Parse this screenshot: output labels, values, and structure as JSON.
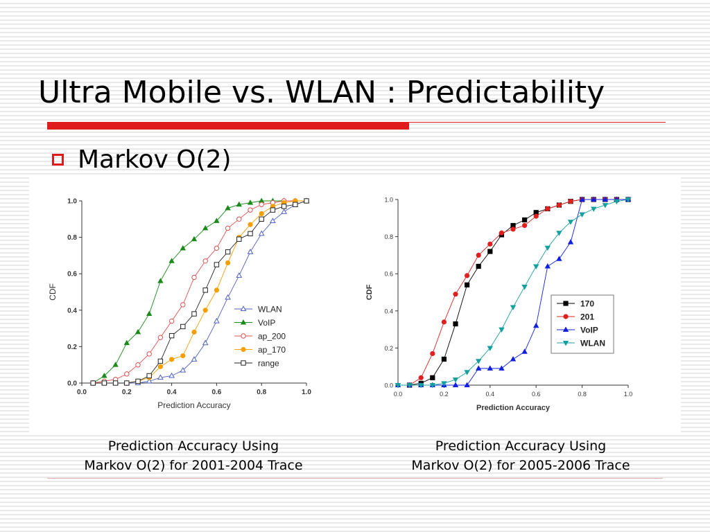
{
  "slide": {
    "title": "Ultra Mobile vs. WLAN : Predictability",
    "bullet": "Markov O(2)",
    "accent_color": "#e01b1b",
    "captions": [
      [
        "Prediction Accuracy Using",
        "Markov O(2) for 2001-2004 Trace"
      ],
      [
        "Prediction Accuracy Using",
        "Markov O(2) for 2005-2006 Trace"
      ]
    ]
  },
  "chart_data": [
    {
      "type": "line",
      "title": "",
      "xlabel": "Prediction Accuracy",
      "ylabel": "CDF",
      "xlim": [
        0,
        1
      ],
      "ylim": [
        0,
        1
      ],
      "xticks": [
        "0.0",
        "0.2",
        "0.4",
        "0.6",
        "0.8",
        "1.0"
      ],
      "yticks": [
        "0.0",
        "0.2",
        "0.4",
        "0.6",
        "0.8",
        "1.0"
      ],
      "legend_position": "center-right",
      "grid": false,
      "series": [
        {
          "name": "WLAN",
          "color": "#4f5fc4",
          "marker": "triangle-up-open",
          "x": [
            0.05,
            0.1,
            0.15,
            0.2,
            0.25,
            0.3,
            0.35,
            0.4,
            0.45,
            0.5,
            0.55,
            0.6,
            0.65,
            0.7,
            0.75,
            0.8,
            0.85,
            0.9,
            0.95,
            1.0
          ],
          "y": [
            0.0,
            0.0,
            0.0,
            0.0,
            0.0,
            0.01,
            0.03,
            0.04,
            0.07,
            0.13,
            0.22,
            0.34,
            0.47,
            0.59,
            0.72,
            0.82,
            0.89,
            0.94,
            0.98,
            1.0
          ]
        },
        {
          "name": "VoIP",
          "color": "#1a8a1a",
          "marker": "triangle-up",
          "x": [
            0.05,
            0.1,
            0.15,
            0.2,
            0.25,
            0.3,
            0.35,
            0.4,
            0.45,
            0.5,
            0.55,
            0.6,
            0.65,
            0.7,
            0.75,
            0.8,
            0.85,
            0.9,
            0.95,
            1.0
          ],
          "y": [
            0.0,
            0.04,
            0.1,
            0.22,
            0.28,
            0.38,
            0.56,
            0.67,
            0.74,
            0.79,
            0.85,
            0.89,
            0.96,
            0.98,
            0.99,
            1.0,
            1.0,
            1.0,
            1.0,
            1.0
          ]
        },
        {
          "name": "ap_200",
          "color": "#e05050",
          "marker": "circle-open",
          "x": [
            0.05,
            0.1,
            0.15,
            0.2,
            0.25,
            0.3,
            0.35,
            0.4,
            0.45,
            0.5,
            0.55,
            0.6,
            0.65,
            0.7,
            0.75,
            0.8,
            0.85,
            0.9,
            0.95,
            1.0
          ],
          "y": [
            0.0,
            0.01,
            0.02,
            0.05,
            0.1,
            0.16,
            0.25,
            0.34,
            0.43,
            0.58,
            0.67,
            0.74,
            0.85,
            0.9,
            0.95,
            0.98,
            0.99,
            1.0,
            1.0,
            1.0
          ]
        },
        {
          "name": "ap_170",
          "color": "#f5a000",
          "marker": "circle",
          "x": [
            0.05,
            0.1,
            0.15,
            0.2,
            0.25,
            0.3,
            0.35,
            0.4,
            0.45,
            0.5,
            0.55,
            0.6,
            0.65,
            0.7,
            0.75,
            0.8,
            0.85,
            0.9,
            0.95,
            1.0
          ],
          "y": [
            0.0,
            0.0,
            0.0,
            0.0,
            0.01,
            0.03,
            0.09,
            0.13,
            0.15,
            0.28,
            0.4,
            0.51,
            0.66,
            0.8,
            0.87,
            0.93,
            0.97,
            0.99,
            1.0,
            1.0
          ]
        },
        {
          "name": "range",
          "color": "#222222",
          "marker": "square-open",
          "x": [
            0.05,
            0.1,
            0.15,
            0.2,
            0.25,
            0.3,
            0.35,
            0.4,
            0.45,
            0.5,
            0.55,
            0.6,
            0.65,
            0.7,
            0.75,
            0.8,
            0.85,
            0.9,
            0.95,
            1.0
          ],
          "y": [
            0.0,
            0.0,
            0.0,
            0.0,
            0.01,
            0.04,
            0.12,
            0.26,
            0.31,
            0.38,
            0.51,
            0.65,
            0.72,
            0.79,
            0.82,
            0.9,
            0.95,
            0.97,
            0.98,
            1.0
          ]
        }
      ]
    },
    {
      "type": "line",
      "title": "",
      "xlabel": "Prediction Accuracy",
      "ylabel": "CDF",
      "xlim": [
        0,
        1
      ],
      "ylim": [
        0,
        1
      ],
      "xticks": [
        "0.0",
        "0.2",
        "0.4",
        "0.6",
        "0.8",
        "1.0"
      ],
      "yticks": [
        "0.0",
        "0.2",
        "0.4",
        "0.6",
        "0.8",
        "1.0"
      ],
      "legend_position": "center-right",
      "grid": false,
      "series": [
        {
          "name": "170",
          "color": "#000000",
          "marker": "square",
          "x": [
            0.05,
            0.1,
            0.15,
            0.2,
            0.25,
            0.3,
            0.35,
            0.4,
            0.45,
            0.5,
            0.55,
            0.6,
            0.65,
            0.7,
            0.75,
            0.8,
            0.85,
            0.9,
            0.95,
            1.0
          ],
          "y": [
            0.0,
            0.01,
            0.04,
            0.14,
            0.33,
            0.54,
            0.64,
            0.72,
            0.81,
            0.86,
            0.89,
            0.93,
            0.95,
            0.97,
            0.99,
            1.0,
            1.0,
            1.0,
            1.0,
            1.0
          ]
        },
        {
          "name": "201",
          "color": "#e02020",
          "marker": "circle",
          "x": [
            0.05,
            0.1,
            0.15,
            0.2,
            0.25,
            0.3,
            0.35,
            0.4,
            0.45,
            0.5,
            0.55,
            0.6,
            0.65,
            0.7,
            0.75,
            0.8,
            0.85,
            0.9,
            0.95,
            1.0
          ],
          "y": [
            0.0,
            0.04,
            0.17,
            0.34,
            0.49,
            0.59,
            0.7,
            0.76,
            0.82,
            0.84,
            0.86,
            0.91,
            0.95,
            0.97,
            0.99,
            1.0,
            1.0,
            1.0,
            1.0,
            1.0
          ]
        },
        {
          "name": "VoIP",
          "color": "#1020e0",
          "marker": "triangle-up",
          "x": [
            0.0,
            0.05,
            0.1,
            0.15,
            0.2,
            0.25,
            0.3,
            0.35,
            0.4,
            0.45,
            0.5,
            0.55,
            0.6,
            0.65,
            0.7,
            0.75,
            0.8,
            0.85,
            0.9,
            0.95,
            1.0
          ],
          "y": [
            0.0,
            0.0,
            0.0,
            0.0,
            0.0,
            0.0,
            0.0,
            0.09,
            0.09,
            0.09,
            0.14,
            0.18,
            0.32,
            0.64,
            0.68,
            0.77,
            1.0,
            1.0,
            1.0,
            1.0,
            1.0
          ]
        },
        {
          "name": "WLAN",
          "color": "#15a0a0",
          "marker": "triangle-down",
          "x": [
            0.0,
            0.05,
            0.1,
            0.15,
            0.2,
            0.25,
            0.3,
            0.35,
            0.4,
            0.45,
            0.5,
            0.55,
            0.6,
            0.65,
            0.7,
            0.75,
            0.8,
            0.85,
            0.9,
            0.95,
            1.0
          ],
          "y": [
            0.0,
            0.0,
            0.0,
            0.0,
            0.01,
            0.03,
            0.07,
            0.13,
            0.2,
            0.3,
            0.42,
            0.53,
            0.64,
            0.74,
            0.82,
            0.88,
            0.92,
            0.95,
            0.97,
            0.99,
            1.0
          ]
        }
      ]
    }
  ]
}
